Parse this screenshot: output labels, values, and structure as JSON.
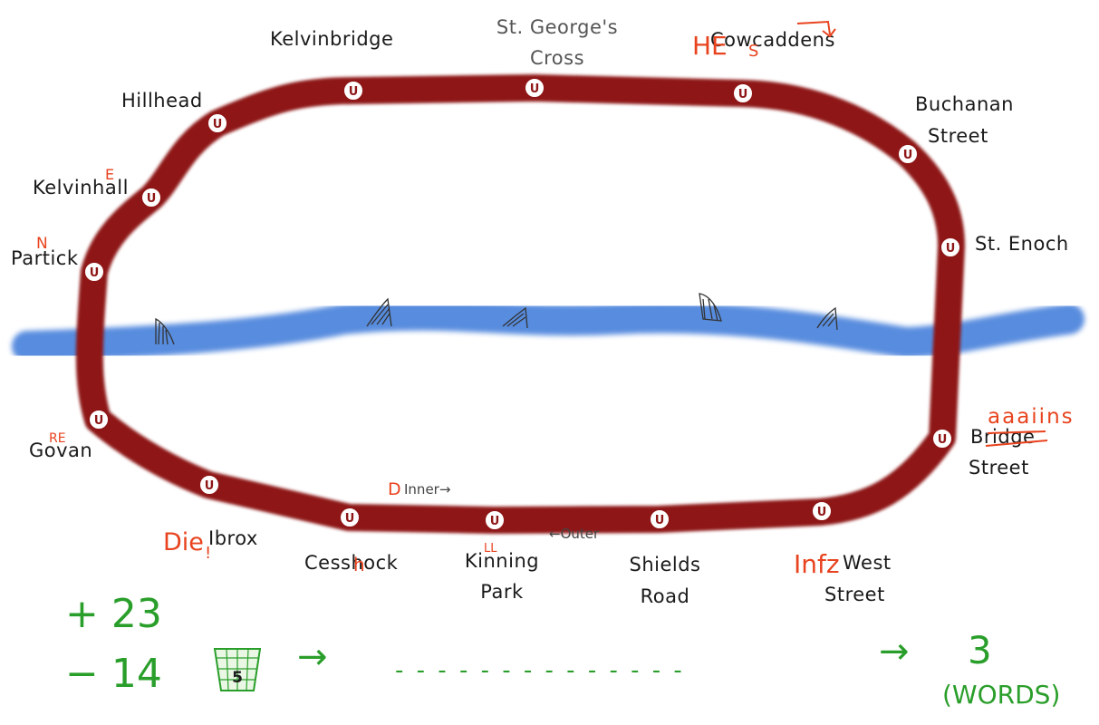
{
  "colors": {
    "loop": "#8e1616",
    "river": "#4f86dd",
    "annotation": "#e8431e",
    "score": "#2a9e2a"
  },
  "map": {
    "station_marker_letter": "U",
    "stations": {
      "kelvinbridge": "Kelvinbridge",
      "st_georges_cross_1": "St. George's",
      "st_georges_cross_2": "Cross",
      "cowcaddens": "Cowcaddens",
      "buchanan_street_1": "Buchanan",
      "buchanan_street_2": "Street",
      "hillhead": "Hillhead",
      "kelvinhall": "Kelvinhall",
      "partick": "Partick",
      "st_enoch": "St. Enoch",
      "govan": "Govan",
      "bridge_street_1": "Bridge",
      "bridge_street_2": "Street",
      "ibrox": "Ibrox",
      "cessnock": "Cesshock",
      "kinning_park_1": "Kinning",
      "kinning_park_2": "Park",
      "shields_road_1": "Shields",
      "shields_road_2": "Road",
      "west_street_1": "West",
      "west_street_2": "Street"
    },
    "directions": {
      "inner": "Inner→",
      "outer": "←Outer"
    },
    "icons": [
      "shark-fin-icon"
    ]
  },
  "annotations": {
    "cowcaddens_prefix": "HE",
    "cowcaddens_mid": "S",
    "kelvinhall_letter": "E",
    "partick_letter": "N",
    "govan_letters": "RE",
    "bridge_street_replacement": "aaaiins",
    "ibrox_prefix": "Die",
    "ibrox_exclaim": "!",
    "cessnock_letter": "h",
    "kinning_letters": "LL",
    "inner_letter": "D",
    "west_street_prefix": "Infz"
  },
  "score": {
    "plus": "+ 23",
    "minus": "− 14",
    "bin_count": "5",
    "arrow_1": "→",
    "blanks": "- - - - - - - - - - - - - -",
    "arrow_2": "→",
    "word_count": "3",
    "word_unit": "(WORDS)"
  }
}
